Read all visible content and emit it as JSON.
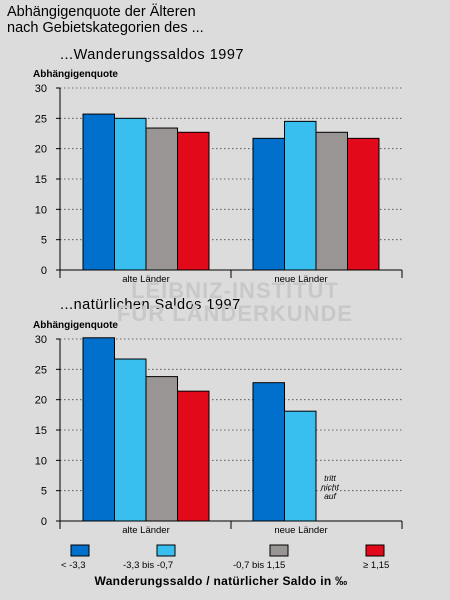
{
  "main_title": {
    "line1": "Abhängigenquote der Älteren",
    "line2": "nach Gebietskategorien des ..."
  },
  "watermark": {
    "line1": "LEIBNIZ-INSTITUT",
    "line2": "FÜR LÄNDERKUNDE"
  },
  "colors": [
    "#0070cc",
    "#38bff0",
    "#9a9595",
    "#e20a1a"
  ],
  "chart_data": [
    {
      "type": "bar",
      "title": "...Wanderungssaldos 1997",
      "ylabel": "Abhängigenquote",
      "xlabel": "",
      "ylim": [
        0,
        30
      ],
      "yticks": [
        0,
        5,
        10,
        15,
        20,
        25,
        30
      ],
      "grid": true,
      "categories": [
        "alte Länder",
        "neue Länder"
      ],
      "series": [
        {
          "name": "< -3,3",
          "values": [
            25.7,
            21.7
          ]
        },
        {
          "name": "-3,3 bis -0,7",
          "values": [
            25.0,
            24.5
          ]
        },
        {
          "name": "-0,7 bis 1,15",
          "values": [
            23.4,
            22.7
          ]
        },
        {
          "name": "≥ 1,15",
          "values": [
            22.7,
            21.7
          ]
        }
      ]
    },
    {
      "type": "bar",
      "title": "...natürlichen Saldos 1997",
      "ylabel": "Abhängigenquote",
      "xlabel": "",
      "ylim": [
        0,
        30
      ],
      "yticks": [
        0,
        5,
        10,
        15,
        20,
        25,
        30
      ],
      "grid": true,
      "categories": [
        "alte Länder",
        "neue Länder"
      ],
      "series": [
        {
          "name": "< -3,3",
          "values": [
            30.2,
            22.8
          ]
        },
        {
          "name": "-3,3 bis -0,7",
          "values": [
            26.7,
            18.1
          ]
        },
        {
          "name": "-0,7 bis 1,15",
          "values": [
            23.8,
            null
          ]
        },
        {
          "name": "≥ 1,15",
          "values": [
            21.4,
            null
          ]
        }
      ],
      "annotation": {
        "lines": [
          "tritt",
          "nicht",
          "auf"
        ]
      }
    }
  ],
  "legend": {
    "title": "Wanderungssaldo / natürlicher Saldo in ‰",
    "items": [
      "< -3,3",
      "-3,3 bis -0,7",
      "-0,7 bis 1,15",
      "≥ 1,15"
    ]
  }
}
